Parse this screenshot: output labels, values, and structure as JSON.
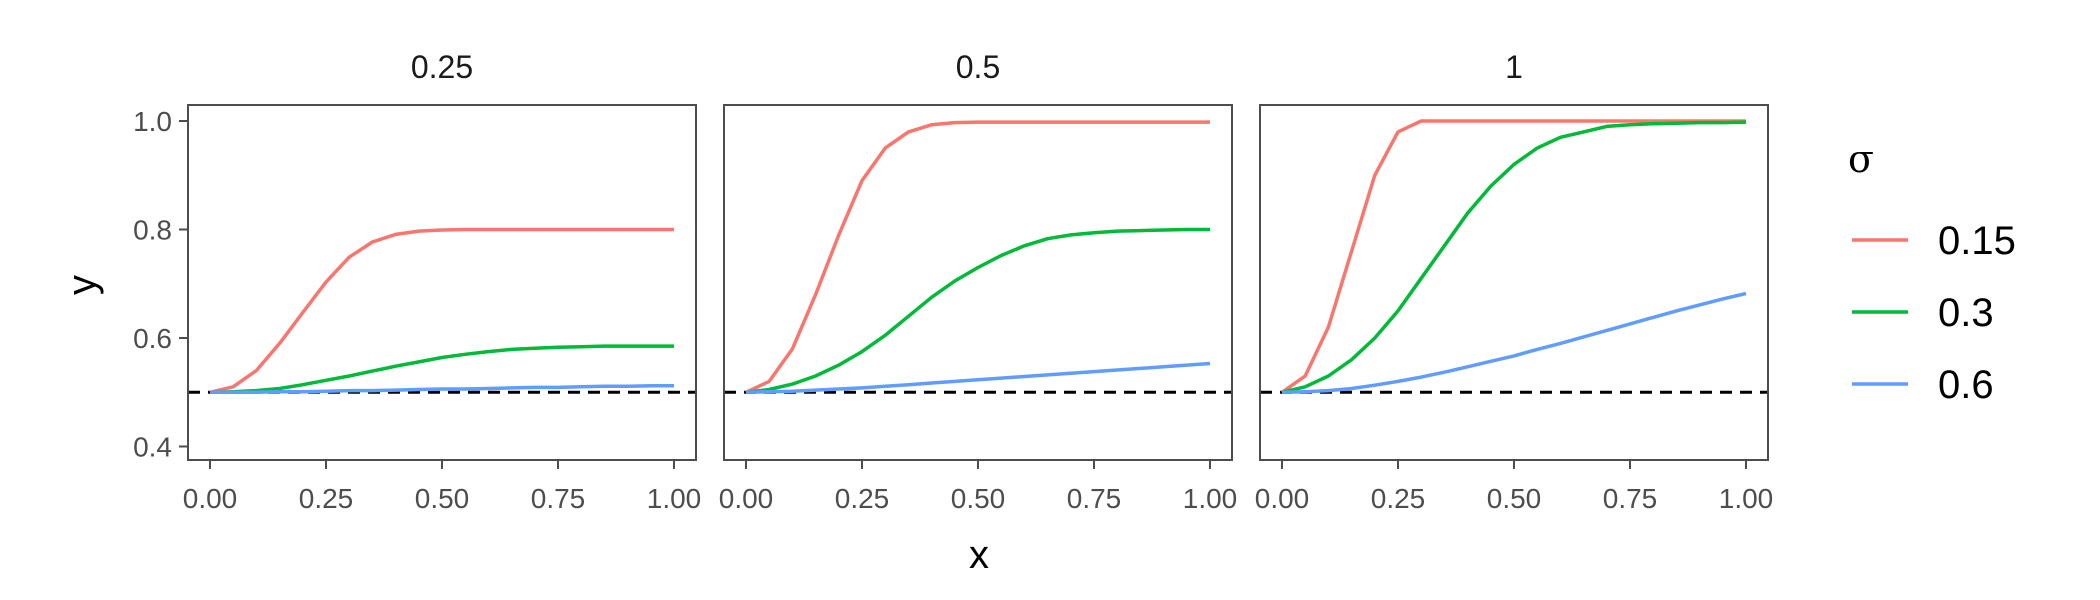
{
  "chart_data": {
    "type": "line",
    "facet_labels": [
      "0.25",
      "0.5",
      "1"
    ],
    "xlabel": "x",
    "ylabel": "y",
    "xlim": [
      0,
      1
    ],
    "ylim": [
      0.38,
      1.02
    ],
    "x_ticks": [
      "0.00",
      "0.25",
      "0.50",
      "0.75",
      "1.00"
    ],
    "y_ticks": [
      "0.4",
      "0.6",
      "0.8",
      "1.0"
    ],
    "reference_line": {
      "y": 0.5,
      "style": "dashed",
      "color": "#000000"
    },
    "legend": {
      "title": "σ",
      "position": "right",
      "entries": [
        {
          "name": "0.15",
          "color": "#F8766D"
        },
        {
          "name": "0.3",
          "color": "#00BA38"
        },
        {
          "name": "0.6",
          "color": "#619CFF"
        }
      ]
    },
    "x": [
      0,
      0.05,
      0.1,
      0.15,
      0.2,
      0.25,
      0.3,
      0.35,
      0.4,
      0.45,
      0.5,
      0.55,
      0.6,
      0.65,
      0.7,
      0.75,
      0.8,
      0.85,
      0.9,
      0.95,
      1.0
    ],
    "panels": [
      {
        "facet": "0.25",
        "series": [
          {
            "name": "0.15",
            "values": [
              0.5,
              0.51,
              0.54,
              0.59,
              0.647,
              0.703,
              0.749,
              0.777,
              0.791,
              0.797,
              0.799,
              0.8,
              0.8,
              0.8,
              0.8,
              0.8,
              0.8,
              0.8,
              0.8,
              0.8,
              0.8
            ]
          },
          {
            "name": "0.3",
            "values": [
              0.5,
              0.501,
              0.503,
              0.507,
              0.514,
              0.522,
              0.53,
              0.539,
              0.548,
              0.556,
              0.564,
              0.57,
              0.575,
              0.579,
              0.581,
              0.583,
              0.584,
              0.585,
              0.585,
              0.585,
              0.585
            ]
          },
          {
            "name": "0.6",
            "values": [
              0.5,
              0.5,
              0.5,
              0.501,
              0.501,
              0.502,
              0.503,
              0.503,
              0.504,
              0.505,
              0.506,
              0.506,
              0.507,
              0.508,
              0.509,
              0.509,
              0.51,
              0.511,
              0.511,
              0.512,
              0.512
            ]
          }
        ]
      },
      {
        "facet": "0.5",
        "series": [
          {
            "name": "0.15",
            "values": [
              0.5,
              0.52,
              0.58,
              0.68,
              0.79,
              0.89,
              0.95,
              0.98,
              0.993,
              0.997,
              0.998,
              0.998,
              0.998,
              0.998,
              0.998,
              0.998,
              0.998,
              0.998,
              0.998,
              0.998,
              0.998
            ]
          },
          {
            "name": "0.3",
            "values": [
              0.5,
              0.505,
              0.515,
              0.53,
              0.55,
              0.575,
              0.605,
              0.64,
              0.675,
              0.705,
              0.73,
              0.752,
              0.77,
              0.783,
              0.79,
              0.794,
              0.797,
              0.798,
              0.799,
              0.8,
              0.8
            ]
          },
          {
            "name": "0.6",
            "values": [
              0.5,
              0.501,
              0.502,
              0.504,
              0.506,
              0.508,
              0.511,
              0.514,
              0.517,
              0.52,
              0.523,
              0.526,
              0.529,
              0.532,
              0.535,
              0.538,
              0.541,
              0.544,
              0.547,
              0.55,
              0.553
            ]
          }
        ]
      },
      {
        "facet": "1",
        "series": [
          {
            "name": "0.15",
            "values": [
              0.5,
              0.53,
              0.62,
              0.76,
              0.9,
              0.98,
              1.0,
              1.0,
              1.0,
              1.0,
              1.0,
              1.0,
              1.0,
              1.0,
              1.0,
              1.0,
              1.0,
              1.0,
              1.0,
              1.0,
              1.0
            ]
          },
          {
            "name": "0.3",
            "values": [
              0.5,
              0.51,
              0.53,
              0.56,
              0.6,
              0.65,
              0.71,
              0.77,
              0.83,
              0.88,
              0.92,
              0.95,
              0.97,
              0.98,
              0.99,
              0.993,
              0.995,
              0.996,
              0.997,
              0.997,
              0.998
            ]
          },
          {
            "name": "0.6",
            "values": [
              0.5,
              0.501,
              0.503,
              0.507,
              0.513,
              0.52,
              0.528,
              0.537,
              0.547,
              0.557,
              0.567,
              0.579,
              0.59,
              0.602,
              0.614,
              0.626,
              0.638,
              0.65,
              0.661,
              0.672,
              0.682
            ]
          }
        ]
      }
    ]
  }
}
